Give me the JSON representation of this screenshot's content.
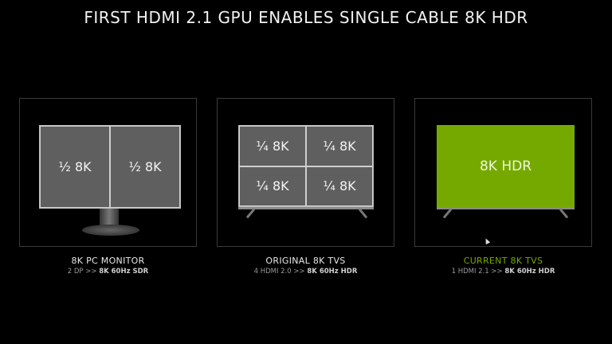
{
  "title": "FIRST HDMI 2.1 GPU ENABLES SINGLE CABLE 8K HDR",
  "accent": "#76a900",
  "panels": [
    {
      "cells": [
        "½ 8K",
        "½ 8K"
      ],
      "heading": "8K PC MONITOR",
      "sub_prefix": "2 DP >> ",
      "sub_bold": "8K 60Hz SDR"
    },
    {
      "cells": [
        "¼ 8K",
        "¼ 8K",
        "¼ 8K",
        "¼ 8K"
      ],
      "heading": "ORIGINAL 8K TVS",
      "sub_prefix": "4 HDMI 2.0 >> ",
      "sub_bold": "8K 60Hz HDR"
    },
    {
      "cells": [
        "8K HDR"
      ],
      "heading": "CURRENT 8K TVS",
      "sub_prefix": "1 HDMI 2.1 >> ",
      "sub_bold": "8K 60Hz HDR"
    }
  ]
}
